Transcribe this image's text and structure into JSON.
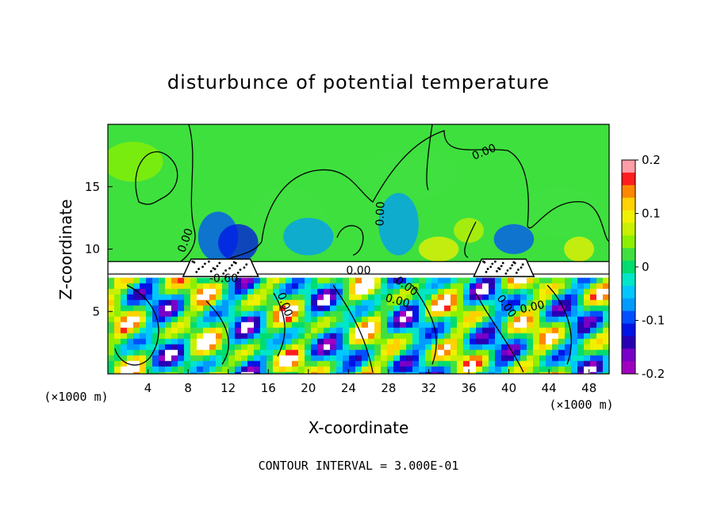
{
  "chart_data": {
    "type": "heatmap",
    "title": "disturbunce of potential temperature",
    "xlabel": "X-coordinate",
    "ylabel": "Z-coordinate",
    "x_unit": "(×1000 m)",
    "x_unit_right": "(×1000 m)",
    "xlim": [
      0,
      50
    ],
    "ylim": [
      0,
      20
    ],
    "x_ticks": [
      4,
      8,
      12,
      16,
      20,
      24,
      28,
      32,
      36,
      40,
      44,
      48
    ],
    "y_ticks": [
      5,
      10,
      15
    ],
    "colorbar": {
      "range": [
        -0.2,
        0.2
      ],
      "tick_values": [
        0.2,
        0.1,
        0,
        -0.1,
        -0.2
      ],
      "tick_labels": [
        "0.2",
        "0.1",
        "0",
        "-0.1",
        "-0.2"
      ],
      "colors": [
        "#ff9ea8",
        "#ff1e1e",
        "#ff8800",
        "#ffd200",
        "#f0f000",
        "#c8f000",
        "#8cf000",
        "#40e040",
        "#00dc6e",
        "#00e6c8",
        "#00c8ff",
        "#009bff",
        "#0050ff",
        "#0014e6",
        "#2800b4",
        "#7800c8",
        "#a000c0"
      ]
    },
    "contour_labels": [
      "0.00",
      "0.00",
      "-0.60",
      "0.00",
      "0.00",
      "0.00",
      "0.00",
      "0.00",
      "0.00",
      "0.00"
    ],
    "mask_band": [
      8,
      9
    ],
    "mountains": [
      [
        7.5,
        15
      ],
      [
        36.5,
        42.5
      ]
    ],
    "footer": "CONTOUR INTERVAL = 3.000E-01"
  }
}
